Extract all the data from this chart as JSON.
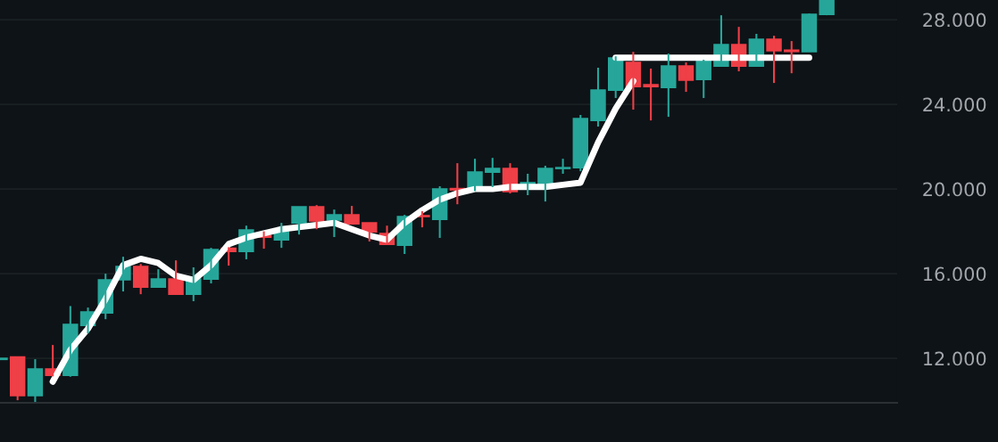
{
  "chart_data": {
    "type": "candlestick",
    "categories": [
      null,
      null,
      null,
      null,
      null,
      null,
      null,
      null,
      null,
      null,
      null,
      null,
      null,
      null,
      null,
      null,
      null,
      null,
      null,
      null,
      null,
      null,
      null,
      null,
      null,
      null,
      null,
      null,
      null,
      null,
      null,
      null,
      null,
      null,
      null,
      null,
      null,
      null,
      null,
      null,
      null,
      null,
      null,
      null,
      null,
      null,
      null,
      null
    ],
    "ohlc": [
      [
        11950,
        12000,
        11950,
        12000
      ],
      [
        12060,
        12080,
        10020,
        10240
      ],
      [
        10240,
        11960,
        9940,
        11500
      ],
      [
        11500,
        12630,
        11150,
        11200
      ],
      [
        11200,
        14470,
        11130,
        13600
      ],
      [
        13560,
        14400,
        13180,
        14190
      ],
      [
        14150,
        16000,
        13850,
        15710
      ],
      [
        15710,
        16800,
        15160,
        16340
      ],
      [
        16340,
        16460,
        15030,
        15370
      ],
      [
        15370,
        16210,
        15330,
        15750
      ],
      [
        15750,
        16630,
        15030,
        15030
      ],
      [
        15030,
        16300,
        14700,
        15750
      ],
      [
        15750,
        17220,
        15540,
        17140
      ],
      [
        17200,
        17250,
        16380,
        17050
      ],
      [
        17050,
        18270,
        16680,
        18060
      ],
      [
        17800,
        18000,
        17180,
        17720
      ],
      [
        17600,
        18400,
        17220,
        17980
      ],
      [
        18400,
        19160,
        17850,
        19160
      ],
      [
        19160,
        19240,
        18100,
        18490
      ],
      [
        18530,
        19030,
        17730,
        18780
      ],
      [
        18780,
        19200,
        18360,
        18360
      ],
      [
        18400,
        18400,
        17520,
        17980
      ],
      [
        17900,
        18270,
        17390,
        17390
      ],
      [
        17350,
        18780,
        16930,
        18700
      ],
      [
        18740,
        18950,
        18190,
        18700
      ],
      [
        18570,
        20130,
        17690,
        20000
      ],
      [
        20020,
        21220,
        19280,
        19960
      ],
      [
        19960,
        21430,
        19900,
        20800
      ],
      [
        20800,
        21470,
        20090,
        20970
      ],
      [
        20970,
        21220,
        19790,
        19880
      ],
      [
        20230,
        20720,
        19710,
        20300
      ],
      [
        20090,
        21100,
        19410,
        20970
      ],
      [
        20970,
        21430,
        20720,
        21010
      ],
      [
        21010,
        23500,
        20840,
        23330
      ],
      [
        23240,
        25730,
        22950,
        24670
      ],
      [
        24670,
        26270,
        24300,
        26190
      ],
      [
        25980,
        26480,
        23750,
        24840
      ],
      [
        24930,
        25690,
        23240,
        24840
      ],
      [
        24800,
        26400,
        23410,
        25810
      ],
      [
        25810,
        25980,
        24590,
        25140
      ],
      [
        25180,
        26110,
        24300,
        26110
      ],
      [
        25810,
        28210,
        25810,
        26820
      ],
      [
        26820,
        27660,
        25560,
        25810
      ],
      [
        25810,
        27330,
        25810,
        27070
      ],
      [
        27070,
        27240,
        25010,
        26530
      ],
      [
        26560,
        26990,
        25470,
        26500
      ],
      [
        26490,
        28290,
        26490,
        28250
      ],
      [
        28250,
        28900,
        28210,
        28900
      ]
    ],
    "colors": [
      "#26a69a",
      "#ef3f47",
      "#26a69a",
      "#ef3f47",
      "#26a69a",
      "#26a69a",
      "#26a69a",
      "#26a69a",
      "#ef3f47",
      "#26a69a",
      "#ef3f47",
      "#26a69a",
      "#26a69a",
      "#ef3f47",
      "#26a69a",
      "#ef3f47",
      "#26a69a",
      "#26a69a",
      "#ef3f47",
      "#26a69a",
      "#ef3f47",
      "#ef3f47",
      "#ef3f47",
      "#26a69a",
      "#ef3f47",
      "#26a69a",
      "#ef3f47",
      "#26a69a",
      "#26a69a",
      "#ef3f47",
      "#26a69a",
      "#26a69a",
      "#26a69a",
      "#26a69a",
      "#26a69a",
      "#26a69a",
      "#ef3f47",
      "#ef3f47",
      "#26a69a",
      "#ef3f47",
      "#26a69a",
      "#26a69a",
      "#ef3f47",
      "#26a69a",
      "#ef3f47",
      "#ef3f47",
      "#26a69a",
      "#26a69a"
    ],
    "series": [
      {
        "type": "line",
        "color": "#ffffff",
        "values": [
          null,
          null,
          null,
          10900,
          12400,
          13400,
          14800,
          16400,
          16700,
          16500,
          15900,
          15700,
          16400,
          17400,
          17700,
          17900,
          18100,
          18200,
          18300,
          18400,
          18100,
          17800,
          17600,
          18400,
          19000,
          19500,
          19800,
          20000,
          20000,
          20100,
          20100,
          20100,
          20200,
          20300,
          22200,
          23800,
          25100,
          null,
          null,
          null,
          null,
          null,
          null,
          null,
          null,
          null,
          null,
          null
        ]
      },
      {
        "type": "line",
        "color": "#ffffff",
        "values": [
          null,
          null,
          null,
          null,
          null,
          null,
          null,
          null,
          null,
          null,
          null,
          null,
          null,
          null,
          null,
          null,
          null,
          null,
          null,
          null,
          null,
          null,
          null,
          null,
          null,
          null,
          null,
          null,
          null,
          null,
          null,
          null,
          null,
          null,
          null,
          26200,
          26200,
          26200,
          26200,
          26200,
          26200,
          26200,
          26200,
          26200,
          26200,
          26200,
          26200,
          null
        ]
      }
    ],
    "ylim": [
      9900,
      28930
    ],
    "yticks": [
      {
        "value": 12000,
        "label": "12.000"
      },
      {
        "value": 16000,
        "label": "16.000"
      },
      {
        "value": 20000,
        "label": "20.000"
      },
      {
        "value": 24000,
        "label": "24.000"
      },
      {
        "value": 28000,
        "label": "28.000"
      }
    ],
    "grid": "y"
  }
}
